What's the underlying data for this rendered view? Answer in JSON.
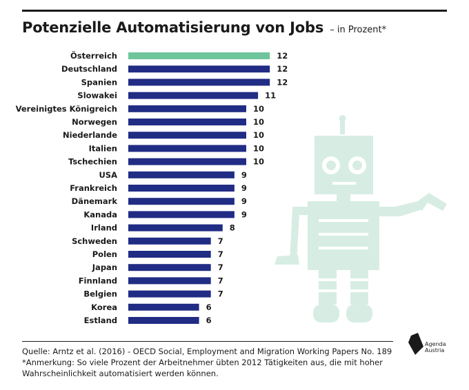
{
  "header": {
    "title": "Potenzielle Automatisierung von Jobs",
    "subtitle": "– in Prozent*"
  },
  "colors": {
    "highlight": "#6fc59b",
    "bar": "#212c84",
    "robot": "#d7ede3",
    "text": "#1a1a1a"
  },
  "chart_data": {
    "type": "bar",
    "orientation": "horizontal",
    "title": "Potenzielle Automatisierung von Jobs",
    "subtitle": "– in Prozent*",
    "xlabel": "",
    "ylabel": "",
    "categories": [
      "Österreich",
      "Deutschland",
      "Spanien",
      "Slowakei",
      "Vereinigtes Königreich",
      "Norwegen",
      "Niederlande",
      "Italien",
      "Tschechien",
      "USA",
      "Frankreich",
      "Dänemark",
      "Kanada",
      "Irland",
      "Schweden",
      "Polen",
      "Japan",
      "Finnland",
      "Belgien",
      "Korea",
      "Estland"
    ],
    "values": [
      12,
      12,
      12,
      11,
      10,
      10,
      10,
      10,
      10,
      9,
      9,
      9,
      9,
      8,
      7,
      7,
      7,
      7,
      7,
      6,
      6
    ],
    "highlight_category": "Österreich",
    "data_labels": true,
    "grid": false
  },
  "footer": {
    "source": "Quelle: Arntz et al. (2016) - OECD Social, Employment and Migration Working Papers No. 189",
    "note_line1": "*Anmerkung: So viele Prozent der Arbeitnehmer übten 2012 Tätigkeiten aus, die mit hoher",
    "note_line2": "Wahrscheinlichkeit automatisiert werden können."
  },
  "logo": {
    "name": "agenda-austria-logo",
    "line1": "Agenda",
    "line2": "Austria"
  }
}
